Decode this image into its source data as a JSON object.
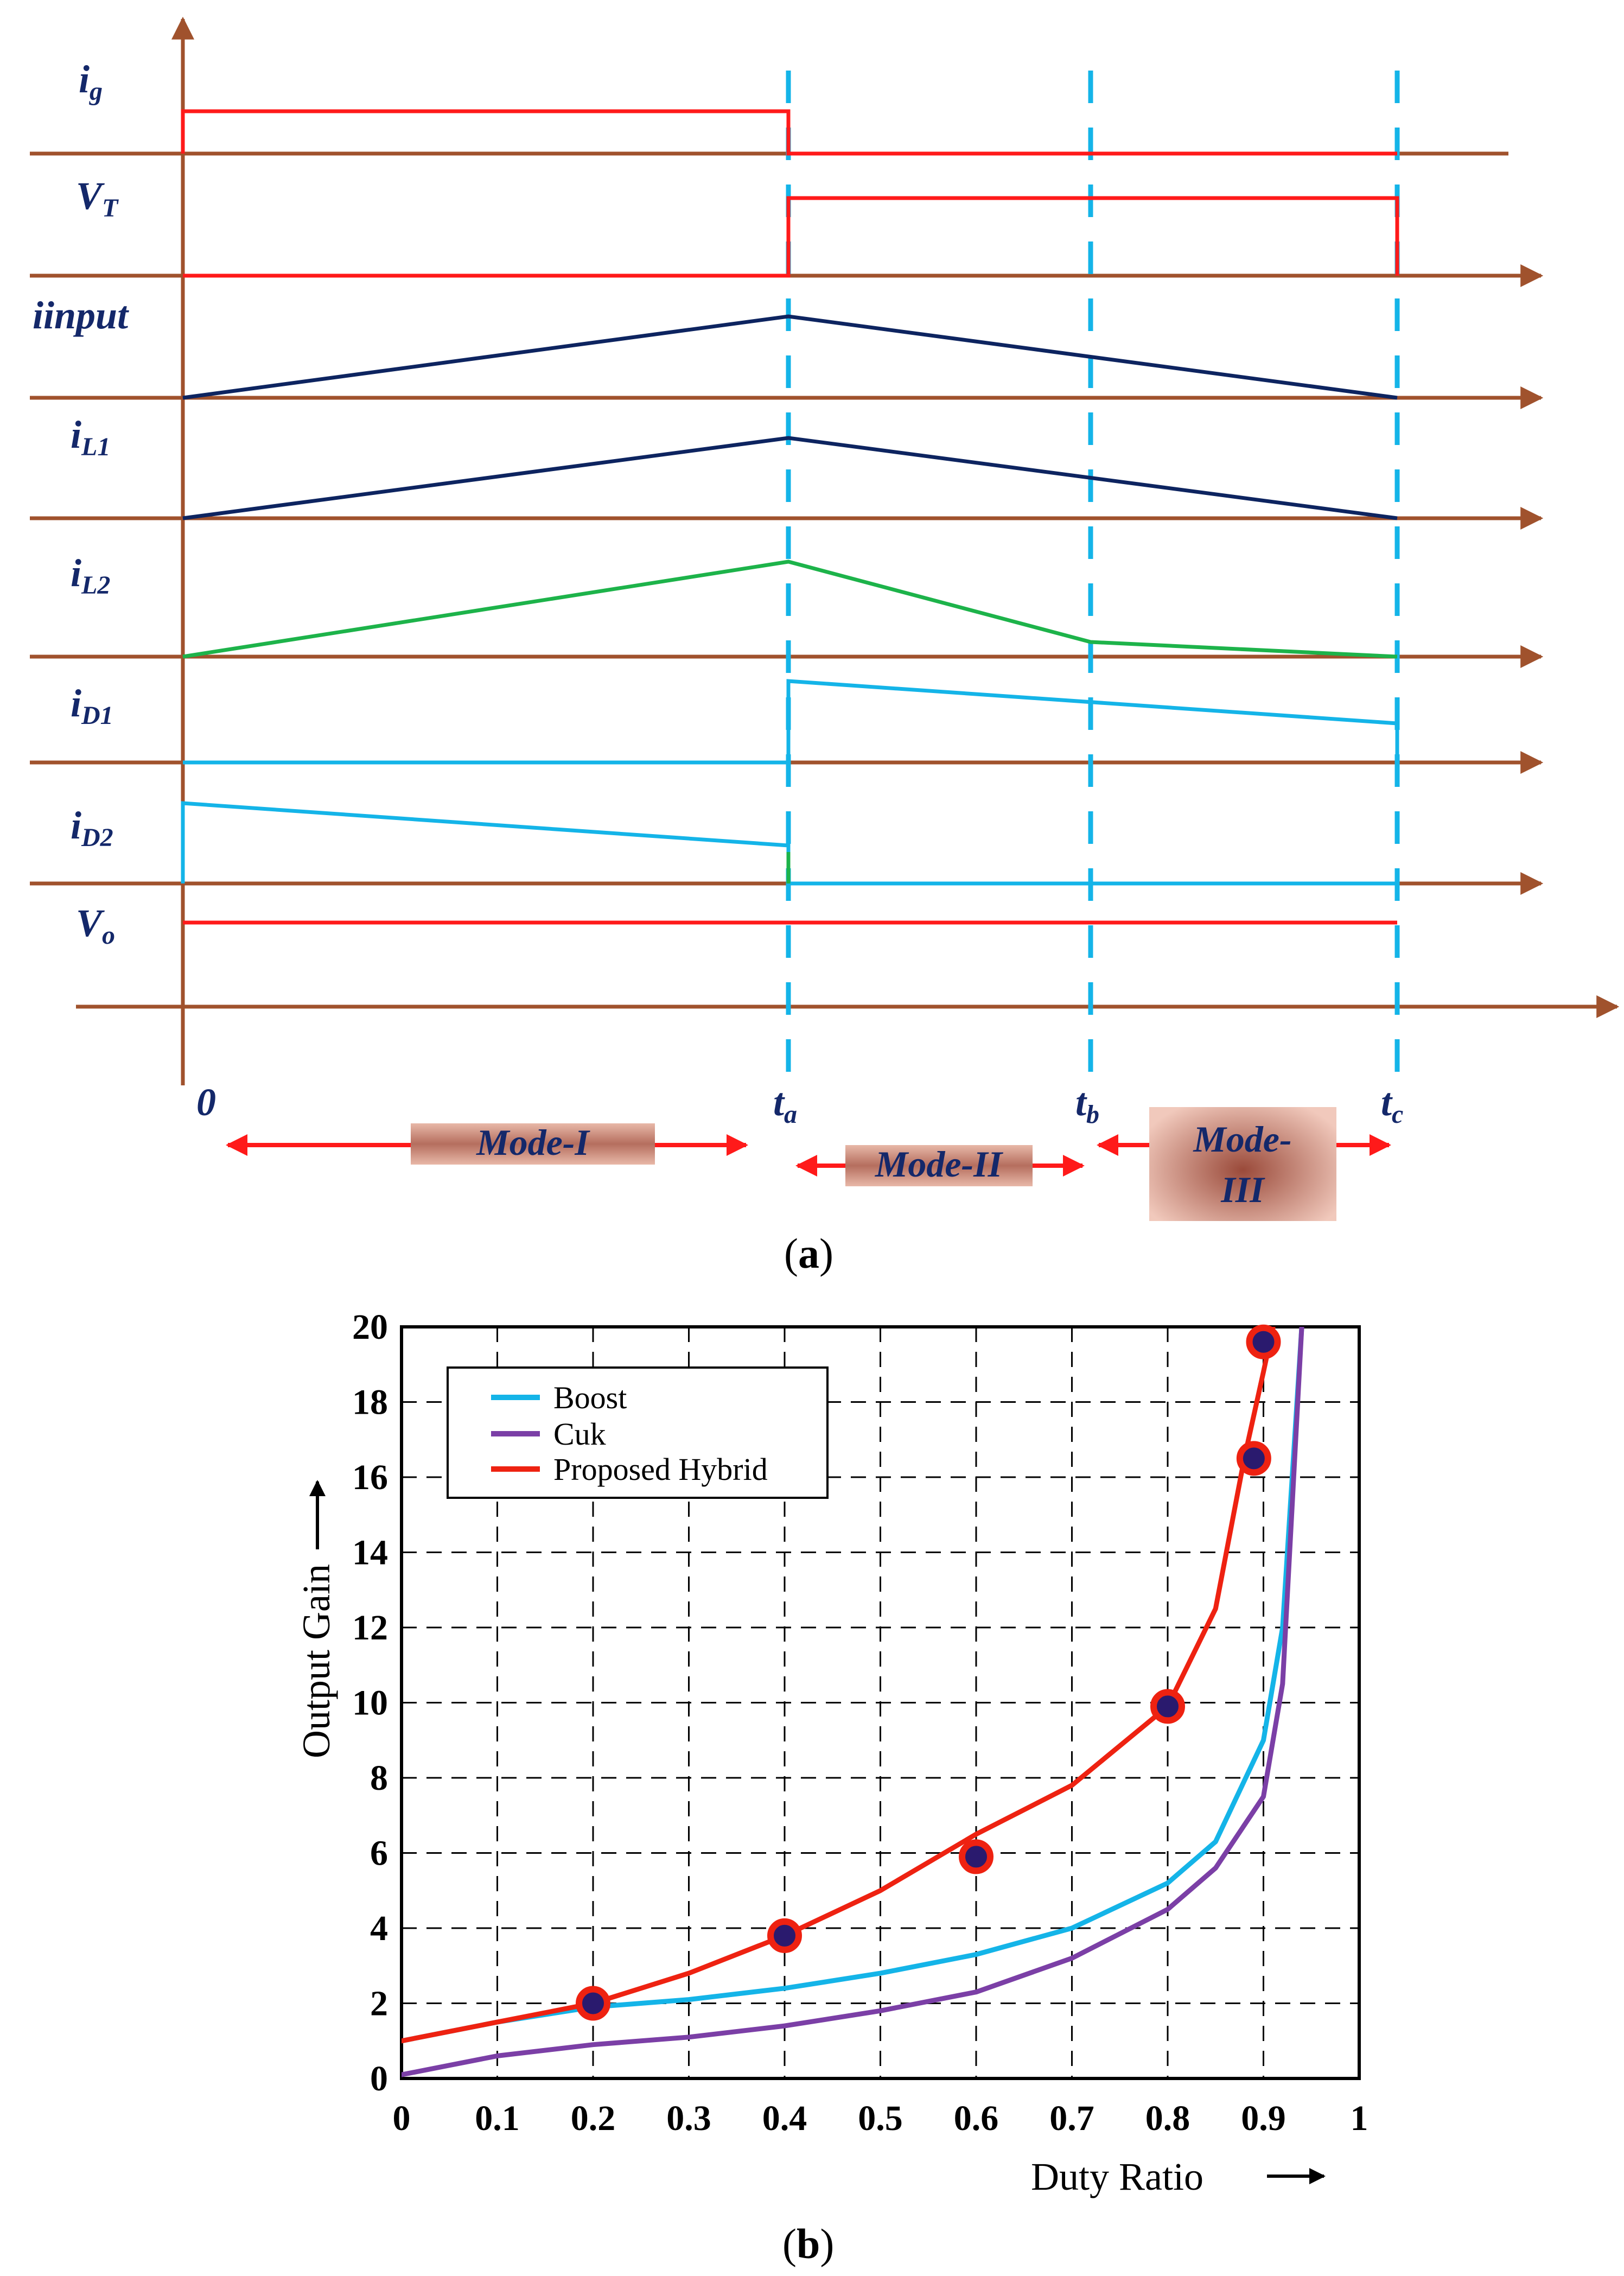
{
  "figure_a": {
    "caption_letter": "a",
    "caption_open": "(",
    "caption_close": ")",
    "signal_labels": [
      {
        "main": "i",
        "sub": "g"
      },
      {
        "main": "V",
        "sub": "T"
      },
      {
        "main": "iinput",
        "sub": ""
      },
      {
        "main": "i",
        "sub": "L1"
      },
      {
        "main": "i",
        "sub": "L2"
      },
      {
        "main": "i",
        "sub": "D1"
      },
      {
        "main": "i",
        "sub": "D2"
      },
      {
        "main": "V",
        "sub": "o"
      }
    ],
    "time_marks": [
      {
        "main": "0",
        "sub": ""
      },
      {
        "main": "t",
        "sub": "a"
      },
      {
        "main": "t",
        "sub": "b"
      },
      {
        "main": "t",
        "sub": "c"
      }
    ],
    "modes": [
      "Mode-I",
      "Mode-II",
      "Mode-",
      "III"
    ],
    "colors": {
      "axis": "#a0522d",
      "red": "#ff1a1a",
      "navy": "#0d2460",
      "green": "#1db34a",
      "cyan": "#14b4e8",
      "label": "#14286a"
    }
  },
  "chart_data": {
    "type": "line",
    "caption_letter": "b",
    "caption_open": "(",
    "caption_close": ")",
    "xlabel": "Duty Ratio",
    "ylabel": "Output Gain",
    "xlim": [
      0,
      1
    ],
    "ylim": [
      0,
      20
    ],
    "x_ticks": [
      "0",
      "0.1",
      "0.2",
      "0.3",
      "0.4",
      "0.5",
      "0.6",
      "0.7",
      "0.8",
      "0.9",
      "1"
    ],
    "y_ticks": [
      "0",
      "2",
      "4",
      "6",
      "8",
      "10",
      "12",
      "14",
      "16",
      "18",
      "20"
    ],
    "grid": true,
    "legend": "top-left",
    "series": [
      {
        "name": "Boost",
        "color": "#14b4e8",
        "x": [
          0,
          0.1,
          0.2,
          0.3,
          0.4,
          0.5,
          0.6,
          0.7,
          0.8,
          0.85,
          0.9,
          0.92,
          0.94
        ],
        "y": [
          1.0,
          1.5,
          1.9,
          2.1,
          2.4,
          2.8,
          3.3,
          4.0,
          5.2,
          6.3,
          9.0,
          12.0,
          20.0
        ]
      },
      {
        "name": "Cuk",
        "color": "#7b3fa6",
        "x": [
          0,
          0.1,
          0.2,
          0.3,
          0.4,
          0.5,
          0.6,
          0.7,
          0.8,
          0.85,
          0.9,
          0.92,
          0.94
        ],
        "y": [
          0.1,
          0.6,
          0.9,
          1.1,
          1.4,
          1.8,
          2.3,
          3.2,
          4.5,
          5.6,
          7.5,
          10.5,
          20.0
        ]
      },
      {
        "name": "Proposed Hybrid",
        "color": "#ee2211",
        "x": [
          0,
          0.1,
          0.2,
          0.3,
          0.4,
          0.5,
          0.6,
          0.7,
          0.8,
          0.85,
          0.88,
          0.9,
          0.91
        ],
        "y": [
          1.0,
          1.5,
          2.0,
          2.8,
          3.8,
          5.0,
          6.5,
          7.8,
          9.9,
          12.5,
          16.5,
          18.8,
          20.0
        ]
      }
    ],
    "markers": [
      {
        "x": 0.2,
        "y": 2.0
      },
      {
        "x": 0.4,
        "y": 3.8
      },
      {
        "x": 0.6,
        "y": 5.9
      },
      {
        "x": 0.8,
        "y": 9.9
      },
      {
        "x": 0.89,
        "y": 16.5
      },
      {
        "x": 0.9,
        "y": 19.6
      }
    ]
  }
}
